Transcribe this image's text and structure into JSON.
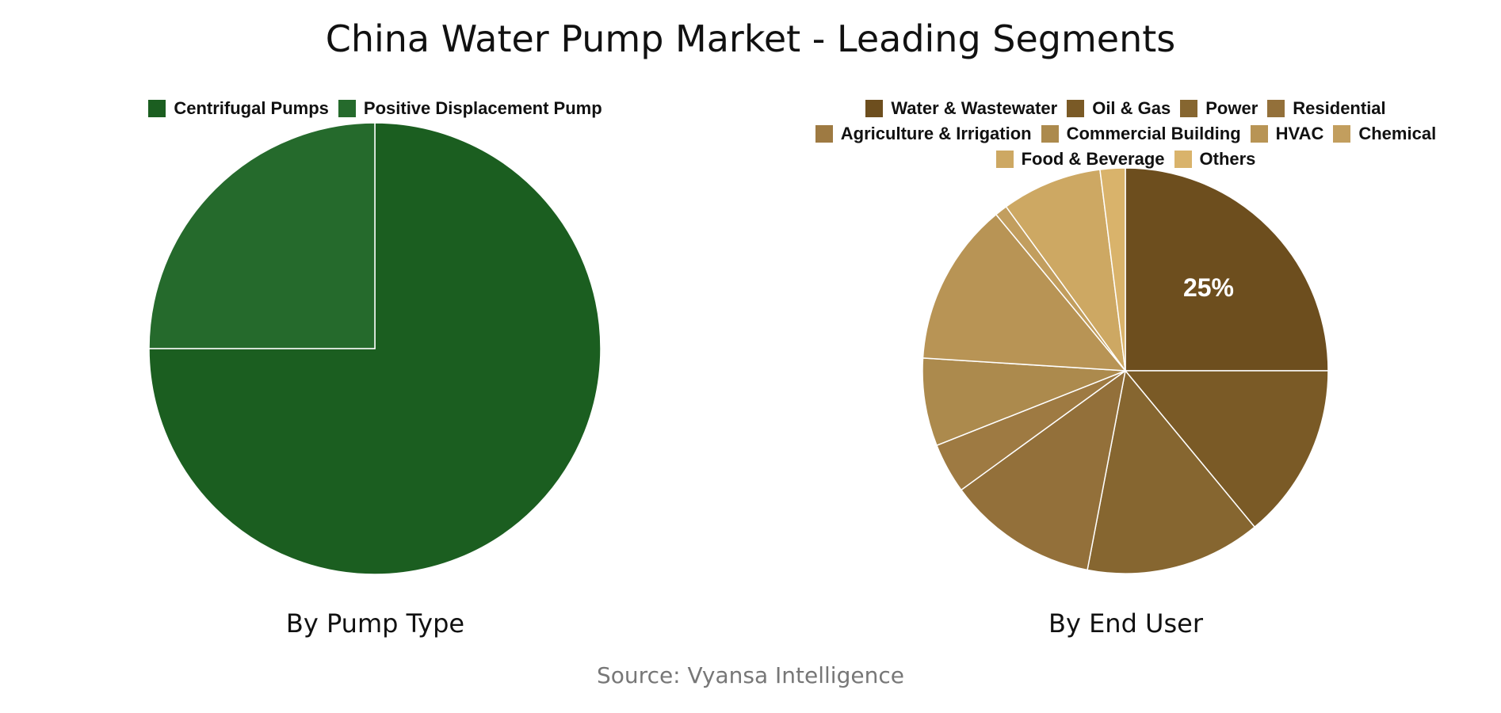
{
  "title": "China Water Pump Market - Leading Segments",
  "source": "Source: Vyansa Intelligence",
  "chart_data": [
    {
      "type": "pie",
      "subtitle": "By Pump Type",
      "categories": [
        "Centrifugal Pumps",
        "Positive Displacement Pump"
      ],
      "values": [
        75,
        25
      ],
      "colors": [
        "#1b5e20",
        "#256a2c"
      ],
      "data_labels": [
        "",
        ""
      ],
      "start_angle_deg": 0,
      "direction": "clockwise",
      "legend_position": "top"
    },
    {
      "type": "pie",
      "subtitle": "By End User",
      "categories": [
        "Water & Wastewater",
        "Oil & Gas",
        "Power",
        "Residential",
        "Agriculture & Irrigation",
        "Commercial Building",
        "HVAC",
        "Chemical",
        "Food & Beverage",
        "Others"
      ],
      "values": [
        25,
        14,
        14,
        12,
        4,
        7,
        13,
        1,
        8,
        2
      ],
      "colors": [
        "#6d4e1e",
        "#7a5a26",
        "#866630",
        "#93703a",
        "#9e7a42",
        "#ac8a4d",
        "#b89455",
        "#c29e5e",
        "#cda863",
        "#d9b36b"
      ],
      "data_labels": [
        "25%",
        "",
        "",
        "",
        "",
        "",
        "",
        "",
        "",
        ""
      ],
      "start_angle_deg": 0,
      "direction": "clockwise",
      "legend_position": "top"
    }
  ]
}
